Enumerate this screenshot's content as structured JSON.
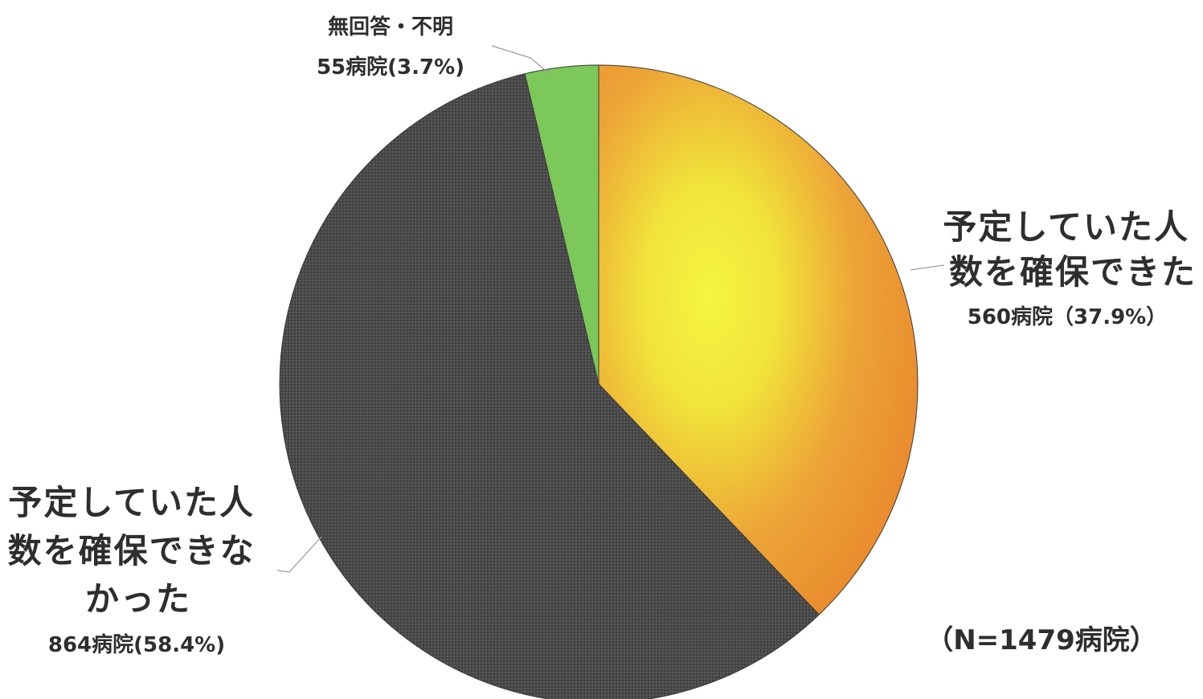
{
  "chart_data": {
    "type": "pie",
    "total_note": "（N=1479病院）",
    "slices": [
      {
        "name": "予定していた人数を確保できた",
        "label_lines": [
          "予定していた人",
          "数を確保できた"
        ],
        "count_label": "560病院（37.9%）",
        "value": 560,
        "percent": 37.9,
        "color": "#e8892c"
      },
      {
        "name": "予定していた人数を確保できなかった",
        "label_lines": [
          "予定していた人",
          "数を確保できな",
          "かった"
        ],
        "count_label": "864病院(58.4%)",
        "value": 864,
        "percent": 58.4,
        "color": "#454545"
      },
      {
        "name": "無回答・不明",
        "label_lines": [
          "無回答・不明"
        ],
        "count_label": "55病院(3.7%)",
        "value": 55,
        "percent": 3.7,
        "color": "#7cc85a"
      }
    ]
  }
}
